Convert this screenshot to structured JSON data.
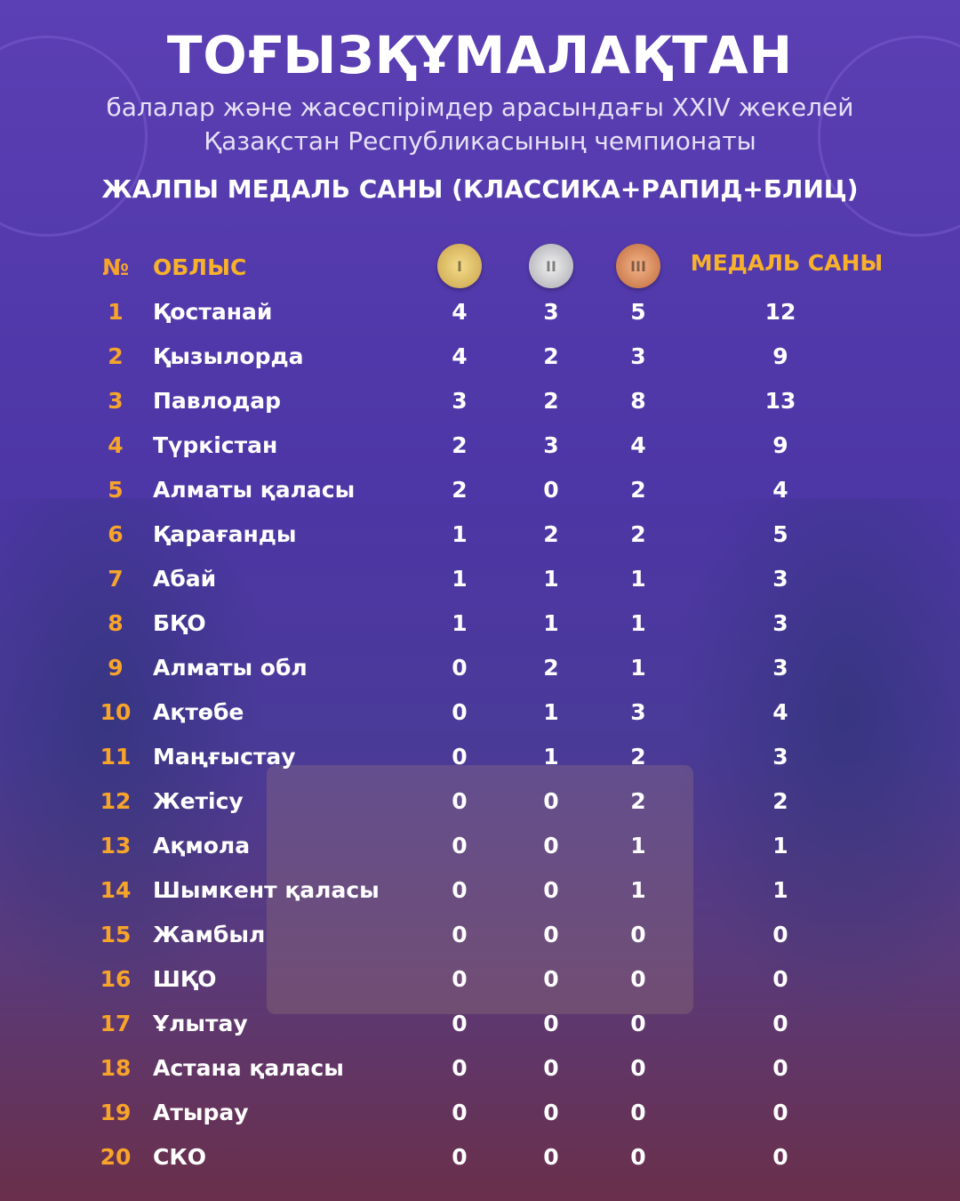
{
  "header": {
    "title": "ТОҒЫЗҚҰМАЛАҚТАН",
    "subtitle": [
      "балалар және жасөспірімдер арасындағы XXIV жекелей",
      "Қазақстан Республикасының чемпионаты"
    ],
    "heading": "ЖАЛПЫ МЕДАЛЬ САНЫ (КЛАССИКА+РАПИД+БЛИЦ)"
  },
  "table": {
    "columns": [
      "№",
      "ОБЛЫС",
      "МЕДАЛЬ САНЫ"
    ],
    "medals": [
      "I",
      "II",
      "III"
    ],
    "rows": [
      [
        1,
        "Қостанай",
        4,
        3,
        5,
        12
      ],
      [
        2,
        "Қызылорда",
        4,
        2,
        3,
        9
      ],
      [
        3,
        "Павлодар",
        3,
        2,
        8,
        13
      ],
      [
        4,
        "Түркістан",
        2,
        3,
        4,
        9
      ],
      [
        5,
        "Алматы қаласы",
        2,
        0,
        2,
        4
      ],
      [
        6,
        "Қарағанды",
        1,
        2,
        2,
        5
      ],
      [
        7,
        "Абай",
        1,
        1,
        1,
        3
      ],
      [
        8,
        "БҚО",
        1,
        1,
        1,
        3
      ],
      [
        9,
        "Алматы обл",
        0,
        2,
        1,
        3
      ],
      [
        10,
        "Ақтөбе",
        0,
        1,
        3,
        4
      ],
      [
        11,
        "Маңғыстау",
        0,
        1,
        2,
        3
      ],
      [
        12,
        "Жетісу",
        0,
        0,
        2,
        2
      ],
      [
        13,
        "Ақмола",
        0,
        0,
        1,
        1
      ],
      [
        14,
        "Шымкент қаласы",
        0,
        0,
        1,
        1
      ],
      [
        15,
        "Жамбыл",
        0,
        0,
        0,
        0
      ],
      [
        16,
        "ШҚО",
        0,
        0,
        0,
        0
      ],
      [
        17,
        "Ұлытау",
        0,
        0,
        0,
        0
      ],
      [
        18,
        "Астана қаласы",
        0,
        0,
        0,
        0
      ],
      [
        19,
        "Атырау",
        0,
        0,
        0,
        0
      ],
      [
        20,
        "СКО",
        0,
        0,
        0,
        0
      ]
    ]
  }
}
